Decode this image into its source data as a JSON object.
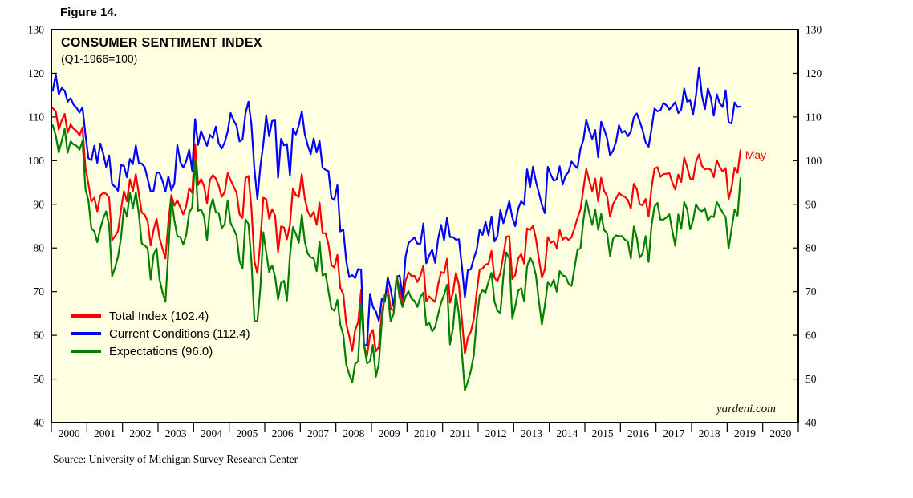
{
  "figure_label": "Figure 14.",
  "source": "Source: University of Michigan Survey Research Center",
  "watermark": "yardeni.com",
  "annotation": {
    "text": "May",
    "x_year": 2019.37,
    "y_value": 102.4,
    "color": "#FF0000"
  },
  "chart_data": {
    "type": "line",
    "title": "CONSUMER SENTIMENT INDEX",
    "subtitle": "(Q1-1966=100)",
    "frequency": "monthly",
    "x_start": {
      "year": 2000,
      "month": 1
    },
    "x_end": {
      "year": 2019,
      "month": 5
    },
    "plot_bg": "#FFFFE1",
    "grid": "off",
    "legend_position": "inside-lower-left",
    "x_axis": {
      "labels": [
        "2000",
        "2001",
        "2002",
        "2003",
        "2004",
        "2005",
        "2006",
        "2007",
        "2008",
        "2009",
        "2010",
        "2011",
        "2012",
        "2013",
        "2014",
        "2015",
        "2016",
        "2017",
        "2018",
        "2019",
        "2020"
      ],
      "range_years": [
        2000,
        2021
      ]
    },
    "y_axis": {
      "min": 40,
      "max": 130,
      "step": 10,
      "ticks": [
        40,
        50,
        60,
        70,
        80,
        90,
        100,
        110,
        120,
        130
      ]
    },
    "series": [
      {
        "name": "Total Index",
        "label": "Total Index (102.4)",
        "latest": 102.4,
        "color": "#FF0000",
        "values": [
          112.0,
          111.3,
          107.1,
          109.2,
          110.7,
          106.4,
          108.3,
          107.3,
          106.8,
          105.8,
          107.6,
          98.4,
          94.7,
          90.6,
          91.5,
          88.4,
          92.0,
          92.6,
          92.4,
          91.5,
          81.8,
          82.7,
          83.9,
          88.8,
          93.0,
          90.7,
          95.7,
          93.0,
          96.9,
          92.4,
          88.1,
          87.6,
          86.1,
          80.6,
          84.2,
          86.7,
          82.4,
          79.9,
          77.6,
          86.0,
          92.1,
          89.7,
          90.9,
          89.3,
          87.7,
          89.6,
          93.7,
          92.6,
          103.8,
          94.4,
          95.8,
          94.2,
          90.2,
          95.6,
          96.7,
          95.9,
          94.2,
          91.7,
          92.8,
          97.1,
          95.5,
          94.1,
          92.6,
          87.7,
          86.9,
          96.0,
          96.5,
          89.1,
          76.9,
          74.2,
          81.6,
          91.5,
          91.2,
          86.7,
          88.9,
          87.4,
          79.1,
          84.9,
          84.7,
          82.0,
          85.4,
          93.6,
          92.1,
          91.7,
          96.9,
          91.3,
          88.4,
          87.1,
          88.3,
          85.3,
          90.4,
          83.4,
          83.4,
          80.9,
          76.1,
          75.5,
          78.4,
          70.8,
          69.5,
          62.6,
          59.8,
          56.4,
          61.2,
          63.0,
          70.3,
          57.6,
          55.3,
          60.1,
          61.2,
          56.3,
          57.3,
          65.1,
          68.7,
          70.8,
          66.0,
          65.7,
          73.5,
          70.6,
          67.4,
          72.5,
          74.4,
          73.6,
          73.6,
          72.2,
          73.6,
          76.0,
          67.8,
          68.9,
          68.2,
          67.7,
          71.6,
          74.5,
          74.2,
          77.5,
          67.5,
          69.8,
          74.3,
          71.5,
          63.7,
          55.8,
          59.5,
          60.8,
          63.7,
          69.9,
          75.0,
          75.3,
          76.2,
          76.4,
          79.3,
          73.2,
          72.3,
          74.3,
          78.3,
          82.6,
          82.7,
          72.9,
          73.8,
          77.6,
          78.6,
          76.4,
          84.5,
          84.1,
          85.1,
          82.1,
          77.5,
          73.2,
          75.1,
          82.5,
          81.2,
          81.6,
          80.0,
          84.1,
          81.9,
          82.5,
          81.8,
          82.5,
          84.6,
          86.9,
          88.8,
          93.6,
          98.1,
          95.4,
          93.0,
          95.9,
          90.7,
          96.1,
          93.1,
          91.9,
          87.2,
          90.0,
          91.3,
          92.6,
          92.0,
          91.7,
          91.0,
          89.0,
          94.7,
          93.5,
          90.0,
          89.8,
          91.2,
          87.2,
          93.8,
          98.2,
          98.5,
          96.3,
          96.9,
          97.0,
          97.1,
          95.0,
          93.4,
          96.8,
          95.1,
          100.7,
          98.5,
          95.9,
          95.7,
          99.7,
          101.4,
          98.8,
          98.0,
          98.2,
          97.9,
          96.2,
          100.1,
          98.6,
          97.5,
          98.3,
          91.2,
          93.8,
          98.4,
          97.2,
          102.4
        ]
      },
      {
        "name": "Current Conditions",
        "label": "Current Conditions (112.4)",
        "latest": 112.4,
        "color": "#0000FF",
        "values": [
          116.0,
          119.7,
          115.2,
          116.6,
          116.0,
          113.5,
          114.3,
          112.8,
          112.1,
          111.0,
          112.2,
          106.0,
          100.6,
          100.1,
          103.4,
          99.5,
          103.9,
          101.6,
          98.6,
          101.2,
          94.6,
          94.0,
          93.1,
          99.0,
          98.8,
          96.2,
          100.4,
          99.2,
          103.5,
          99.5,
          99.3,
          98.5,
          95.8,
          92.9,
          93.1,
          97.3,
          97.2,
          95.4,
          92.9,
          96.4,
          93.2,
          94.7,
          103.6,
          99.7,
          98.4,
          99.9,
          102.5,
          97.7,
          109.5,
          103.6,
          106.8,
          105.0,
          103.4,
          105.9,
          105.2,
          107.8,
          103.9,
          102.8,
          104.2,
          106.7,
          110.9,
          109.2,
          108.0,
          104.4,
          104.9,
          110.8,
          113.5,
          108.2,
          98.1,
          91.2,
          98.6,
          103.8,
          110.3,
          105.6,
          109.1,
          109.2,
          96.1,
          105.0,
          103.5,
          103.8,
          96.6,
          107.3,
          106.0,
          108.1,
          111.3,
          106.1,
          103.5,
          101.5,
          105.1,
          101.9,
          104.5,
          98.4,
          97.9,
          97.6,
          91.5,
          91.0,
          94.4,
          83.8,
          84.2,
          77.0,
          73.3,
          73.8,
          73.1,
          75.2,
          75.0,
          57.5,
          57.9,
          69.5,
          66.5,
          65.5,
          63.3,
          68.3,
          67.7,
          73.2,
          70.5,
          66.6,
          73.4,
          73.7,
          68.8,
          78.0,
          81.1,
          81.8,
          82.4,
          81.0,
          81.0,
          85.6,
          76.5,
          78.3,
          79.6,
          76.6,
          82.1,
          85.3,
          81.8,
          86.9,
          82.5,
          82.5,
          81.9,
          82.0,
          75.8,
          68.7,
          74.9,
          75.1,
          77.6,
          79.6,
          84.2,
          83.0,
          86.0,
          82.9,
          87.2,
          81.5,
          82.7,
          88.7,
          85.7,
          88.1,
          90.7,
          87.0,
          85.0,
          89.0,
          90.7,
          89.9,
          98.0,
          93.8,
          98.6,
          95.2,
          92.6,
          89.9,
          88.0,
          98.6,
          96.8,
          95.4,
          95.7,
          98.7,
          94.5,
          96.6,
          97.4,
          99.8,
          98.9,
          98.3,
          102.7,
          104.8,
          109.3,
          106.9,
          105.0,
          107.0,
          100.8,
          108.9,
          107.2,
          105.1,
          101.2,
          102.3,
          104.3,
          108.1,
          106.4,
          106.8,
          105.6,
          106.7,
          109.9,
          110.8,
          109.0,
          107.0,
          104.2,
          103.2,
          107.3,
          111.9,
          111.3,
          111.5,
          113.2,
          112.7,
          111.7,
          112.5,
          113.4,
          110.9,
          111.7,
          116.5,
          113.5,
          113.8,
          110.5,
          114.9,
          121.2,
          114.9,
          111.8,
          116.5,
          114.4,
          110.3,
          115.2,
          113.1,
          112.3,
          116.1,
          108.8,
          108.5,
          113.3,
          112.3,
          112.4
        ]
      },
      {
        "name": "Expectations",
        "label": "Expectations (96.0)",
        "latest": 96.0,
        "color": "#008000",
        "values": [
          108.1,
          105.8,
          101.9,
          104.5,
          107.3,
          101.8,
          104.4,
          103.7,
          103.4,
          102.5,
          104.5,
          93.5,
          90.9,
          84.5,
          83.8,
          81.3,
          84.4,
          86.8,
          88.4,
          85.2,
          73.5,
          75.5,
          78.0,
          82.3,
          89.3,
          87.2,
          92.7,
          89.1,
          92.7,
          87.9,
          81.0,
          80.6,
          79.9,
          72.8,
          78.5,
          79.9,
          72.8,
          69.9,
          67.7,
          79.3,
          91.4,
          86.4,
          82.7,
          82.5,
          80.8,
          83.0,
          88.1,
          89.3,
          100.1,
          88.5,
          88.8,
          87.3,
          81.8,
          88.9,
          91.2,
          88.2,
          88.0,
          84.5,
          85.5,
          90.9,
          85.7,
          84.4,
          82.8,
          77.0,
          75.3,
          86.5,
          85.5,
          76.9,
          63.3,
          63.2,
          70.7,
          83.6,
          79.0,
          74.5,
          76.0,
          73.4,
          68.2,
          72.0,
          72.5,
          68.0,
          78.2,
          84.8,
          83.2,
          81.2,
          87.6,
          81.5,
          78.7,
          77.9,
          77.6,
          74.7,
          81.5,
          73.7,
          74.1,
          70.1,
          66.2,
          65.6,
          68.1,
          62.4,
          60.1,
          53.3,
          51.1,
          49.2,
          53.5,
          54.0,
          67.2,
          57.6,
          53.6,
          54.0,
          57.8,
          50.5,
          53.5,
          63.1,
          69.4,
          69.2,
          63.2,
          65.0,
          73.5,
          68.6,
          66.5,
          68.9,
          70.1,
          68.4,
          67.9,
          66.5,
          68.8,
          69.8,
          62.3,
          62.9,
          60.9,
          61.9,
          64.8,
          67.5,
          69.3,
          71.6,
          57.9,
          61.6,
          69.5,
          64.8,
          56.0,
          47.4,
          49.4,
          51.8,
          55.4,
          63.6,
          69.1,
          70.3,
          69.8,
          72.3,
          74.3,
          67.8,
          65.6,
          65.1,
          73.5,
          79.0,
          77.6,
          63.8,
          66.6,
          70.2,
          70.8,
          67.8,
          75.8,
          77.8,
          76.5,
          73.7,
          67.8,
          62.5,
          66.8,
          72.1,
          71.2,
          72.7,
          70.0,
          74.7,
          73.7,
          73.5,
          71.8,
          71.3,
          75.4,
          79.6,
          79.9,
          86.4,
          91.0,
          88.0,
          85.3,
          88.8,
          84.2,
          87.8,
          84.1,
          83.4,
          78.2,
          82.1,
          82.9,
          82.7,
          82.7,
          81.9,
          81.5,
          77.6,
          84.9,
          82.4,
          77.8,
          78.7,
          82.7,
          76.8,
          85.2,
          89.5,
          90.3,
          86.5,
          86.5,
          87.0,
          87.7,
          83.9,
          80.5,
          87.7,
          84.4,
          90.5,
          88.9,
          84.3,
          86.3,
          90.0,
          88.8,
          88.4,
          89.1,
          86.3,
          87.3,
          87.1,
          90.5,
          89.3,
          88.1,
          87.0,
          79.9,
          84.4,
          88.8,
          87.4,
          96.0
        ]
      }
    ]
  }
}
